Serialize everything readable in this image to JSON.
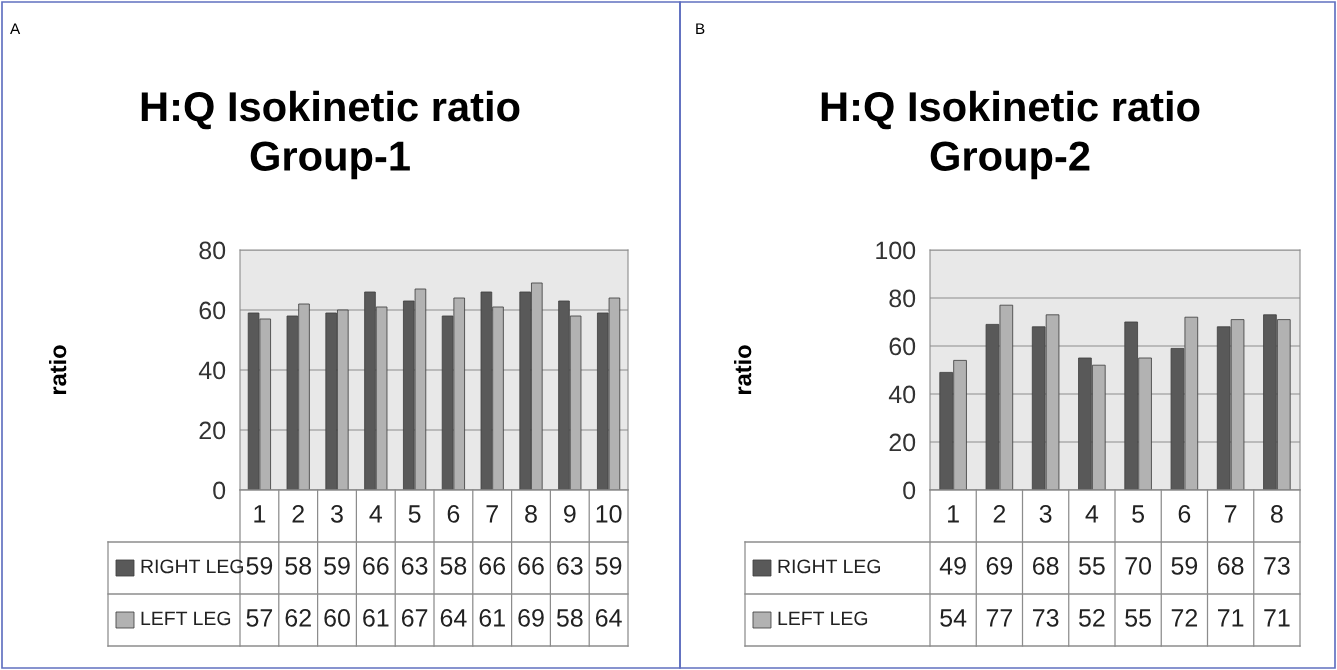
{
  "chart_data": [
    {
      "type": "bar",
      "title": "H:Q Isokinetic ratio\nGroup-1",
      "ylabel": "ratio",
      "annotations": [
        "A"
      ],
      "categories": [
        "1",
        "2",
        "3",
        "4",
        "5",
        "6",
        "7",
        "8",
        "9",
        "10"
      ],
      "series": [
        {
          "name": "RIGHT LEG",
          "color": "#595959",
          "values": [
            59,
            58,
            59,
            66,
            63,
            58,
            66,
            66,
            63,
            59
          ]
        },
        {
          "name": "LEFT LEG",
          "color": "#b2b2b2",
          "values": [
            57,
            62,
            60,
            61,
            67,
            64,
            61,
            69,
            58,
            64
          ]
        }
      ],
      "ylim": [
        0,
        80
      ],
      "yticks": [
        0,
        20,
        40,
        60,
        80
      ],
      "grid": "y",
      "legend": "bottom",
      "data_labels": true
    },
    {
      "type": "bar",
      "title": "H:Q Isokinetic ratio\nGroup-2",
      "ylabel": "ratio",
      "annotations": [
        "B"
      ],
      "categories": [
        "1",
        "2",
        "3",
        "4",
        "5",
        "6",
        "7",
        "8"
      ],
      "series": [
        {
          "name": "RIGHT LEG",
          "color": "#595959",
          "values": [
            49,
            69,
            68,
            55,
            70,
            59,
            68,
            73
          ]
        },
        {
          "name": "LEFT LEG",
          "color": "#b2b2b2",
          "values": [
            54,
            77,
            73,
            52,
            55,
            72,
            71,
            71
          ]
        }
      ],
      "ylim": [
        0,
        100
      ],
      "yticks": [
        0,
        20,
        40,
        60,
        80,
        100
      ],
      "grid": "y",
      "legend": "bottom",
      "data_labels": true
    }
  ]
}
